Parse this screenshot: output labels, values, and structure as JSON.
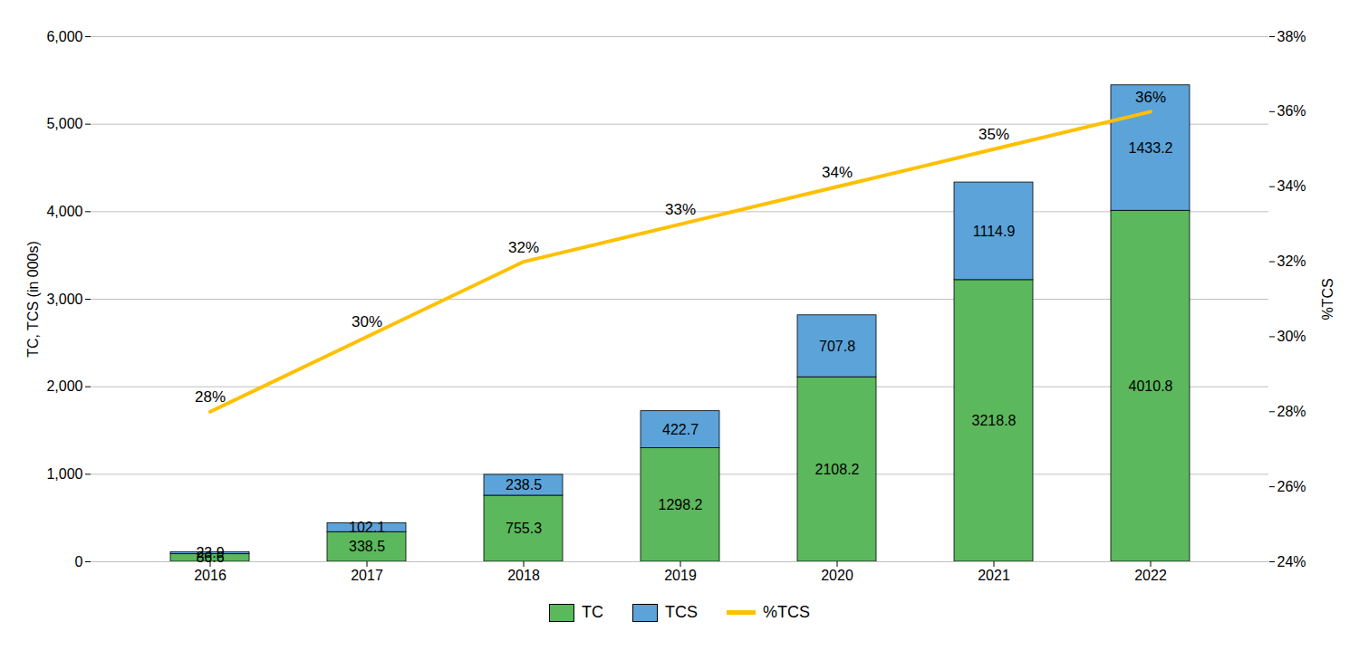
{
  "chart_data": {
    "type": "bar",
    "categories": [
      "2016",
      "2017",
      "2018",
      "2019",
      "2020",
      "2021",
      "2022"
    ],
    "stacked": true,
    "series": [
      {
        "name": "TC",
        "type": "bar",
        "color": "#5CB85C",
        "data_labels": true,
        "values": [
          86.6,
          338.5,
          755.3,
          1298.2,
          2108.2,
          3218.8,
          4010.8
        ]
      },
      {
        "name": "TCS",
        "type": "bar",
        "color": "#5BA3D9",
        "data_labels": true,
        "values": [
          23.9,
          102.1,
          238.5,
          422.7,
          707.8,
          1114.9,
          1433.2
        ]
      },
      {
        "name": "%TCS",
        "type": "line",
        "axis": "y2",
        "color": "#FFC000",
        "data_labels": true,
        "values": [
          0.28,
          0.3,
          0.32,
          0.33,
          0.34,
          0.35,
          0.36
        ],
        "value_labels": [
          "28%",
          "30%",
          "32%",
          "33%",
          "34%",
          "35%",
          "36%"
        ]
      }
    ],
    "ylabel": "TC, TCS (in 000s)",
    "y2label": "%TCS",
    "ylim": [
      0,
      6000
    ],
    "yticks": [
      0,
      1000,
      2000,
      3000,
      4000,
      5000,
      6000
    ],
    "y2lim": [
      0.24,
      0.38
    ],
    "y2ticks": [
      {
        "value": 0.24,
        "label": "24%"
      },
      {
        "value": 0.26,
        "label": "26%"
      },
      {
        "value": 0.28,
        "label": "28%"
      },
      {
        "value": 0.3,
        "label": "30%"
      },
      {
        "value": 0.32,
        "label": "32%"
      },
      {
        "value": 0.34,
        "label": "34%"
      },
      {
        "value": 0.36,
        "label": "36%"
      },
      {
        "value": 0.38,
        "label": "38%"
      }
    ],
    "grid": true,
    "legend": "bottom"
  }
}
